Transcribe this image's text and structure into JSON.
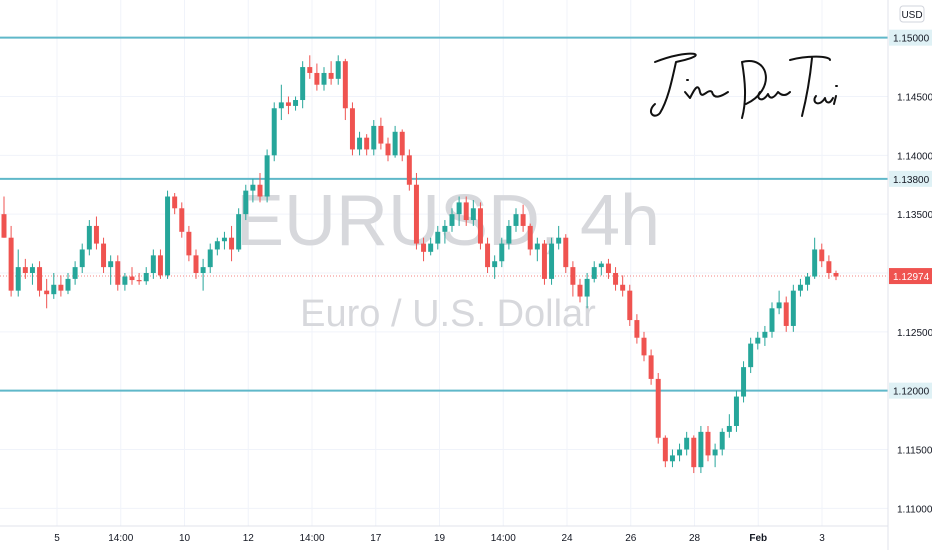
{
  "currency_label": "USD",
  "watermark": {
    "symbol": "EURUSD, 4h",
    "description": "Euro / U.S. Dollar"
  },
  "signature": "Jin Dao Tai",
  "colors": {
    "up": "#26a69a",
    "down": "#ef5350",
    "level_line": "#5fb8c9",
    "level_label_bg": "#dff1f5",
    "price_label_bg": "#ef5350",
    "grid": "#f0f3fa",
    "axis_text": "#131722",
    "watermark": "#d7d8dc"
  },
  "chart_data": {
    "type": "candlestick",
    "symbol": "EURUSD",
    "timeframe": "4h",
    "y_ticks": [
      "1.11000",
      "1.11500",
      "1.12500",
      "1.13000",
      "1.13500",
      "1.14000",
      "1.14500"
    ],
    "y_tick_values": [
      1.11,
      1.115,
      1.125,
      1.13,
      1.135,
      1.14,
      1.145
    ],
    "x_ticks": [
      "5",
      "14:00",
      "10",
      "12",
      "14:00",
      "17",
      "19",
      "14:00",
      "24",
      "26",
      "28",
      "Feb",
      "3"
    ],
    "ylim": [
      1.1085,
      1.1532
    ],
    "horizontal_levels": [
      {
        "label": "1.15000",
        "value": 1.15
      },
      {
        "label": "1.13800",
        "value": 1.138
      },
      {
        "label": "1.12000",
        "value": 1.12
      }
    ],
    "current_price": {
      "label": "1.12974",
      "value": 1.12974
    },
    "candles": [
      [
        1.135,
        1.1365,
        1.133,
        1.133
      ],
      [
        1.133,
        1.134,
        1.128,
        1.1285
      ],
      [
        1.1285,
        1.132,
        1.128,
        1.1305
      ],
      [
        1.1305,
        1.1312,
        1.1295,
        1.13
      ],
      [
        1.13,
        1.1308,
        1.129,
        1.1305
      ],
      [
        1.1305,
        1.131,
        1.128,
        1.1285
      ],
      [
        1.1285,
        1.1295,
        1.127,
        1.1282
      ],
      [
        1.1282,
        1.13,
        1.1278,
        1.129
      ],
      [
        1.129,
        1.1298,
        1.128,
        1.1285
      ],
      [
        1.1285,
        1.13,
        1.1282,
        1.1295
      ],
      [
        1.1295,
        1.131,
        1.129,
        1.1305
      ],
      [
        1.1305,
        1.1325,
        1.13,
        1.132
      ],
      [
        1.132,
        1.1345,
        1.1315,
        1.134
      ],
      [
        1.134,
        1.1348,
        1.132,
        1.1325
      ],
      [
        1.1325,
        1.133,
        1.13,
        1.1305
      ],
      [
        1.1305,
        1.1315,
        1.129,
        1.131
      ],
      [
        1.131,
        1.1315,
        1.1285,
        1.129
      ],
      [
        1.129,
        1.13,
        1.1285,
        1.1297
      ],
      [
        1.1297,
        1.1305,
        1.129,
        1.1294
      ],
      [
        1.1294,
        1.13,
        1.129,
        1.1293
      ],
      [
        1.1293,
        1.1305,
        1.129,
        1.13
      ],
      [
        1.13,
        1.132,
        1.1295,
        1.1315
      ],
      [
        1.1315,
        1.132,
        1.1295,
        1.1298
      ],
      [
        1.1298,
        1.137,
        1.1295,
        1.1365
      ],
      [
        1.1365,
        1.1368,
        1.135,
        1.1355
      ],
      [
        1.1355,
        1.136,
        1.133,
        1.1335
      ],
      [
        1.1335,
        1.134,
        1.131,
        1.1315
      ],
      [
        1.1315,
        1.132,
        1.1295,
        1.13
      ],
      [
        1.13,
        1.1312,
        1.1285,
        1.1305
      ],
      [
        1.1305,
        1.1325,
        1.13,
        1.132
      ],
      [
        1.132,
        1.133,
        1.1315,
        1.1327
      ],
      [
        1.1327,
        1.1335,
        1.132,
        1.133
      ],
      [
        1.133,
        1.134,
        1.131,
        1.132
      ],
      [
        1.132,
        1.1355,
        1.1318,
        1.135
      ],
      [
        1.135,
        1.1375,
        1.1345,
        1.137
      ],
      [
        1.137,
        1.138,
        1.136,
        1.1375
      ],
      [
        1.1375,
        1.1385,
        1.136,
        1.1365
      ],
      [
        1.1365,
        1.1405,
        1.136,
        1.14
      ],
      [
        1.14,
        1.1445,
        1.1395,
        1.144
      ],
      [
        1.144,
        1.146,
        1.143,
        1.1445
      ],
      [
        1.1445,
        1.145,
        1.1435,
        1.1442
      ],
      [
        1.1442,
        1.145,
        1.1438,
        1.1447
      ],
      [
        1.1447,
        1.148,
        1.144,
        1.1475
      ],
      [
        1.1475,
        1.1485,
        1.1465,
        1.147
      ],
      [
        1.147,
        1.1478,
        1.1455,
        1.146
      ],
      [
        1.146,
        1.1475,
        1.1455,
        1.147
      ],
      [
        1.147,
        1.148,
        1.146,
        1.1465
      ],
      [
        1.1465,
        1.1485,
        1.146,
        1.148
      ],
      [
        1.148,
        1.1482,
        1.143,
        1.144
      ],
      [
        1.144,
        1.1445,
        1.14,
        1.1405
      ],
      [
        1.1405,
        1.142,
        1.14,
        1.1415
      ],
      [
        1.1415,
        1.1418,
        1.14,
        1.1405
      ],
      [
        1.1405,
        1.143,
        1.14,
        1.1425
      ],
      [
        1.1425,
        1.1432,
        1.1405,
        1.141
      ],
      [
        1.141,
        1.1415,
        1.1395,
        1.14
      ],
      [
        1.14,
        1.1425,
        1.1398,
        1.142
      ],
      [
        1.142,
        1.1422,
        1.1395,
        1.14
      ],
      [
        1.14,
        1.1405,
        1.137,
        1.1375
      ],
      [
        1.1375,
        1.1385,
        1.132,
        1.1325
      ],
      [
        1.1325,
        1.133,
        1.131,
        1.1318
      ],
      [
        1.1318,
        1.133,
        1.1315,
        1.1325
      ],
      [
        1.1325,
        1.134,
        1.132,
        1.1335
      ],
      [
        1.1335,
        1.1345,
        1.1325,
        1.134
      ],
      [
        1.134,
        1.1355,
        1.1335,
        1.135
      ],
      [
        1.135,
        1.1365,
        1.134,
        1.136
      ],
      [
        1.136,
        1.1365,
        1.134,
        1.1345
      ],
      [
        1.1345,
        1.1362,
        1.134,
        1.1355
      ],
      [
        1.1355,
        1.136,
        1.132,
        1.1325
      ],
      [
        1.1325,
        1.133,
        1.13,
        1.1305
      ],
      [
        1.1305,
        1.1315,
        1.1295,
        1.131
      ],
      [
        1.131,
        1.133,
        1.1305,
        1.1325
      ],
      [
        1.1325,
        1.1345,
        1.132,
        1.134
      ],
      [
        1.134,
        1.1355,
        1.1335,
        1.135
      ],
      [
        1.135,
        1.1358,
        1.1335,
        1.134
      ],
      [
        1.134,
        1.1342,
        1.1315,
        1.132
      ],
      [
        1.132,
        1.133,
        1.131,
        1.1325
      ],
      [
        1.1325,
        1.1328,
        1.129,
        1.1295
      ],
      [
        1.1295,
        1.133,
        1.129,
        1.1325
      ],
      [
        1.1325,
        1.134,
        1.132,
        1.133
      ],
      [
        1.133,
        1.1333,
        1.13,
        1.1305
      ],
      [
        1.1305,
        1.131,
        1.128,
        1.129
      ],
      [
        1.129,
        1.1295,
        1.1275,
        1.128
      ],
      [
        1.128,
        1.13,
        1.127,
        1.1295
      ],
      [
        1.1295,
        1.131,
        1.1292,
        1.1305
      ],
      [
        1.1305,
        1.131,
        1.1298,
        1.1308
      ],
      [
        1.1308,
        1.1312,
        1.1295,
        1.13
      ],
      [
        1.13,
        1.1305,
        1.1285,
        1.129
      ],
      [
        1.129,
        1.1298,
        1.128,
        1.1285
      ],
      [
        1.1285,
        1.129,
        1.1255,
        1.126
      ],
      [
        1.126,
        1.1265,
        1.124,
        1.1245
      ],
      [
        1.1245,
        1.125,
        1.1225,
        1.123
      ],
      [
        1.123,
        1.1235,
        1.1205,
        1.121
      ],
      [
        1.121,
        1.1215,
        1.1155,
        1.116
      ],
      [
        1.116,
        1.1162,
        1.1135,
        1.114
      ],
      [
        1.114,
        1.115,
        1.1135,
        1.1145
      ],
      [
        1.1145,
        1.1155,
        1.114,
        1.115
      ],
      [
        1.115,
        1.1165,
        1.1145,
        1.116
      ],
      [
        1.116,
        1.1162,
        1.113,
        1.1135
      ],
      [
        1.1135,
        1.117,
        1.113,
        1.1165
      ],
      [
        1.1165,
        1.117,
        1.114,
        1.1145
      ],
      [
        1.1145,
        1.1155,
        1.1135,
        1.115
      ],
      [
        1.115,
        1.1168,
        1.1145,
        1.1165
      ],
      [
        1.1165,
        1.118,
        1.116,
        1.117
      ],
      [
        1.117,
        1.12,
        1.1165,
        1.1195
      ],
      [
        1.1195,
        1.1225,
        1.119,
        1.122
      ],
      [
        1.122,
        1.1245,
        1.1215,
        1.124
      ],
      [
        1.124,
        1.125,
        1.1235,
        1.1245
      ],
      [
        1.1245,
        1.1255,
        1.1238,
        1.125
      ],
      [
        1.125,
        1.1275,
        1.1245,
        1.127
      ],
      [
        1.127,
        1.1285,
        1.1265,
        1.1275
      ],
      [
        1.1275,
        1.128,
        1.125,
        1.1255
      ],
      [
        1.1255,
        1.129,
        1.125,
        1.1285
      ],
      [
        1.1285,
        1.1295,
        1.128,
        1.129
      ],
      [
        1.129,
        1.13,
        1.1285,
        1.1297
      ],
      [
        1.1297,
        1.133,
        1.1295,
        1.132
      ],
      [
        1.132,
        1.1325,
        1.1305,
        1.131
      ],
      [
        1.131,
        1.1315,
        1.1295,
        1.13
      ],
      [
        1.13,
        1.1302,
        1.1294,
        1.1297
      ]
    ]
  }
}
